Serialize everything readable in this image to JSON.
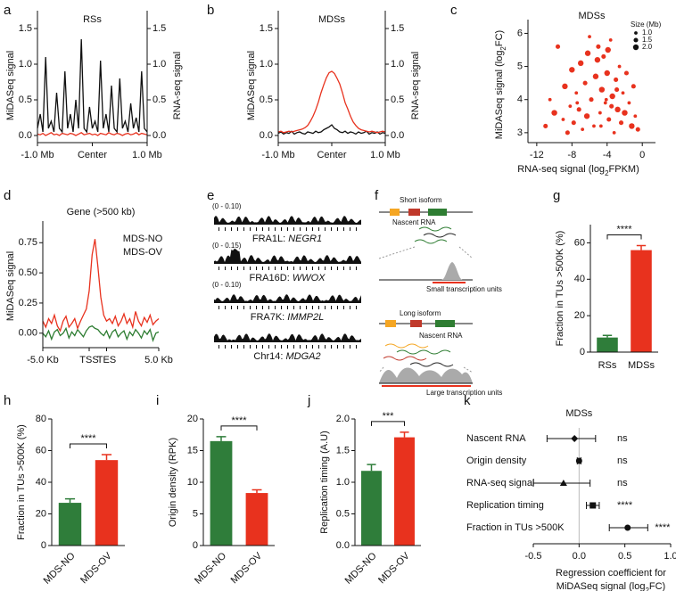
{
  "chart_data": [
    {
      "letter": "a",
      "type": "dual_line",
      "title": "RSs",
      "y_label": "MiDASeq signal",
      "y2_label": "RNA-seq signal",
      "x": [
        -1,
        -0.95,
        -0.9,
        -0.85,
        -0.8,
        -0.75,
        -0.7,
        -0.65,
        -0.6,
        -0.55,
        -0.5,
        -0.45,
        -0.4,
        -0.35,
        -0.3,
        -0.25,
        -0.2,
        -0.15,
        -0.1,
        -0.05,
        0,
        0.05,
        0.1,
        0.15,
        0.2,
        0.25,
        0.3,
        0.35,
        0.4,
        0.45,
        0.5,
        0.55,
        0.6,
        0.65,
        0.7,
        0.75,
        0.8,
        0.85,
        0.9,
        0.95,
        1
      ],
      "xlim": [
        -1,
        1
      ],
      "xticks": [
        {
          "value": -1,
          "label": "-1.0 Mb"
        },
        {
          "value": 0,
          "label": "Center"
        },
        {
          "value": 1,
          "label": "1.0 Mb"
        }
      ],
      "ylim": [
        -0.1,
        1.5
      ],
      "yticks": [
        {
          "value": 0,
          "label": "0.0"
        },
        0.5,
        {
          "value": 1,
          "label": "1.0"
        },
        1.5
      ],
      "y2lim": [
        -0.1,
        1.5
      ],
      "y2ticks": [
        {
          "value": 0,
          "label": "0.0"
        },
        0.5,
        {
          "value": 1,
          "label": "1.0"
        },
        1.5
      ],
      "series": [
        {
          "color": "#e8321e",
          "values": [
            0.02,
            0.01,
            0.03,
            0.0,
            0.02,
            0.04,
            0.01,
            0.02,
            0.0,
            0.03,
            0.02,
            0.01,
            0.03,
            0.02,
            0.0,
            0.02,
            0.04,
            0.01,
            0.02,
            0.03,
            0.01,
            0.02,
            0.0,
            0.03,
            0.02,
            0.01,
            0.04,
            0.02,
            0.01,
            0.03,
            0.02,
            0.0,
            0.02,
            0.03,
            0.01,
            0.02,
            0.04,
            0.01,
            0.03,
            0.02,
            0.01
          ]
        },
        {
          "color": "#111111",
          "axis": "y2",
          "values": [
            0.1,
            0.3,
            0.05,
            1.1,
            0.1,
            0.2,
            0.05,
            0.6,
            0.1,
            0.05,
            0.9,
            0.1,
            0.3,
            0.05,
            0.5,
            0.1,
            1.35,
            0.1,
            0.05,
            0.4,
            0.1,
            0.2,
            0.05,
            1.05,
            0.1,
            0.3,
            0.05,
            0.7,
            0.1,
            0.05,
            0.8,
            0.1,
            0.2,
            0.05,
            0.45,
            0.1,
            0.25,
            0.05,
            0.9,
            0.1,
            0.05
          ]
        }
      ]
    },
    {
      "letter": "b",
      "type": "dual_line",
      "title": "MDSs",
      "y_label": "MiDASeq signal",
      "y2_label": "RNA-seq signal",
      "x": [
        -1,
        -0.95,
        -0.9,
        -0.85,
        -0.8,
        -0.75,
        -0.7,
        -0.65,
        -0.6,
        -0.55,
        -0.5,
        -0.45,
        -0.4,
        -0.35,
        -0.3,
        -0.25,
        -0.2,
        -0.15,
        -0.1,
        -0.05,
        0,
        0.05,
        0.1,
        0.15,
        0.2,
        0.25,
        0.3,
        0.35,
        0.4,
        0.45,
        0.5,
        0.55,
        0.6,
        0.65,
        0.7,
        0.75,
        0.8,
        0.85,
        0.9,
        0.95,
        1
      ],
      "xlim": [
        -1,
        1
      ],
      "xticks": [
        {
          "value": -1,
          "label": "-1.0 Mb"
        },
        {
          "value": 0,
          "label": "Center"
        },
        {
          "value": 1,
          "label": "1.0 Mb"
        }
      ],
      "ylim": [
        -0.1,
        1.5
      ],
      "yticks": [
        {
          "value": 0,
          "label": "0.0"
        },
        0.5,
        {
          "value": 1,
          "label": "1.0"
        },
        1.5
      ],
      "y2lim": [
        -0.1,
        1.5
      ],
      "y2ticks": [
        {
          "value": 0,
          "label": "0.0"
        },
        0.5,
        {
          "value": 1,
          "label": "1.0"
        },
        1.5
      ],
      "series": [
        {
          "color": "#111111",
          "axis": "y2",
          "values": [
            0.03,
            0.05,
            0.02,
            0.04,
            0.03,
            0.06,
            0.02,
            0.04,
            0.05,
            0.03,
            0.02,
            0.05,
            0.04,
            0.03,
            0.06,
            0.04,
            0.05,
            0.08,
            0.1,
            0.12,
            0.15,
            0.1,
            0.08,
            0.05,
            0.04,
            0.06,
            0.03,
            0.05,
            0.04,
            0.02,
            0.05,
            0.03,
            0.04,
            0.06,
            0.02,
            0.04,
            0.03,
            0.05,
            0.02,
            0.04,
            0.03
          ]
        },
        {
          "color": "#e8321e",
          "values": [
            0.05,
            0.06,
            0.04,
            0.05,
            0.06,
            0.05,
            0.06,
            0.07,
            0.08,
            0.09,
            0.11,
            0.14,
            0.2,
            0.27,
            0.36,
            0.47,
            0.6,
            0.71,
            0.81,
            0.88,
            0.9,
            0.87,
            0.8,
            0.72,
            0.6,
            0.46,
            0.37,
            0.27,
            0.19,
            0.14,
            0.1,
            0.08,
            0.07,
            0.06,
            0.05,
            0.06,
            0.05,
            0.04,
            0.05,
            0.06,
            0.05
          ]
        }
      ]
    },
    {
      "letter": "c",
      "type": "scatter",
      "title": "MDSs",
      "color": "#e8321e",
      "x_label": {
        "text": "RNA-seq signal (log",
        "sub": "2",
        "tail": "FPKM)"
      },
      "y_label": {
        "text": "MiDASeq signal (log",
        "sub": "2",
        "tail": "FC)"
      },
      "size_legend": {
        "title": "Size (Mb)",
        "values": [
          {
            "value": 1,
            "label": "1.0"
          },
          1.5,
          {
            "value": 2,
            "label": "2.0"
          }
        ]
      },
      "xlim": [
        -13,
        1.5
      ],
      "xticks": [
        -12,
        -8,
        -4,
        0
      ],
      "ylim": [
        2.7,
        6.2
      ],
      "yticks": [
        3,
        4,
        5,
        6
      ],
      "x": [
        -11,
        -10.5,
        -10,
        -9.6,
        -9,
        -8.8,
        -8.5,
        -8.2,
        -8,
        -7.8,
        -7.5,
        -7.2,
        -7,
        -6.8,
        -6.5,
        -6.3,
        -6,
        -5.8,
        -5.5,
        -5.3,
        -5,
        -4.8,
        -4.6,
        -4.4,
        -4.2,
        -4,
        -3.8,
        -3.6,
        -3.4,
        -3.2,
        -3,
        -2.8,
        -2.6,
        -2.4,
        -2.2,
        -2,
        -1.8,
        -1.5,
        -1.2,
        -1,
        -0.8,
        -0.5,
        -6.2,
        -4.1,
        -3.5,
        -5.1,
        -7.4,
        -2.9,
        -4.7,
        -3.9
      ],
      "y": [
        3.2,
        4.0,
        3.6,
        5.6,
        3.4,
        4.4,
        3.0,
        3.8,
        4.9,
        3.3,
        4.2,
        3.7,
        5.1,
        3.1,
        4.5,
        3.5,
        5.9,
        4.0,
        3.2,
        4.7,
        5.6,
        3.6,
        4.3,
        5.3,
        3.9,
        4.8,
        3.4,
        5.8,
        4.1,
        3.0,
        4.6,
        3.7,
        5.0,
        3.3,
        4.2,
        3.6,
        4.8,
        3.9,
        3.2,
        4.4,
        3.5,
        3.1,
        5.4,
        4.0,
        3.8,
        5.2,
        3.9,
        4.3,
        3.2,
        5.5
      ],
      "sizes": [
        1.5,
        1,
        2,
        1.5,
        1,
        2,
        1.5,
        1,
        2,
        1.5,
        1,
        1.5,
        2,
        1,
        1.5,
        2,
        1,
        1.5,
        1,
        2,
        1.5,
        1,
        2,
        1.5,
        1,
        2,
        1.5,
        1,
        2,
        1,
        1.5,
        2,
        1,
        1.5,
        1,
        2,
        1.5,
        1,
        2,
        1.5,
        1,
        1.5,
        2,
        1,
        1.5,
        2,
        1,
        1.5,
        1,
        2
      ]
    },
    {
      "letter": "d",
      "type": "line",
      "title": "Gene (>500 kb)",
      "y_label": "MiDASeq signal",
      "x": [
        0,
        0.025,
        0.05,
        0.075,
        0.1,
        0.125,
        0.15,
        0.175,
        0.2,
        0.225,
        0.25,
        0.275,
        0.3,
        0.325,
        0.35,
        0.375,
        0.4,
        0.425,
        0.45,
        0.475,
        0.5,
        0.525,
        0.55,
        0.575,
        0.6,
        0.625,
        0.65,
        0.675,
        0.7,
        0.725,
        0.75,
        0.775,
        0.8,
        0.825,
        0.85,
        0.875,
        0.9,
        0.925,
        0.95,
        0.975,
        1
      ],
      "xlim": [
        0,
        1
      ],
      "xticks": [
        {
          "value": 0,
          "label": "-5.0 Kb"
        },
        {
          "value": 0.4,
          "label": "TSS"
        },
        {
          "value": 0.55,
          "label": "TES"
        },
        {
          "value": 1,
          "label": "5.0 Kb"
        }
      ],
      "ylim": [
        -0.12,
        0.9
      ],
      "yticks": [
        {
          "value": 0,
          "label": "0.00"
        },
        0.25,
        {
          "value": 0.5,
          "label": "0.50"
        },
        0.75
      ],
      "series": [
        {
          "name": "MDS-NO",
          "color": "#2e7d32",
          "values": [
            0.0,
            -0.03,
            0.02,
            -0.05,
            0.01,
            0.03,
            -0.02,
            0.0,
            0.04,
            -0.04,
            0.01,
            -0.02,
            0.03,
            0.0,
            -0.03,
            0.02,
            0.05,
            0.06,
            0.04,
            0.03,
            0.0,
            -0.02,
            0.02,
            -0.04,
            0.01,
            0.03,
            -0.03,
            0.0,
            0.02,
            -0.05,
            0.01,
            -0.02,
            0.03,
            0.0,
            -0.04,
            0.02,
            -0.01,
            0.03,
            -0.06,
            0.0,
            0.01
          ]
        },
        {
          "name": "MDS-OV",
          "color": "#e8321e",
          "values": [
            0.1,
            0.05,
            0.12,
            0.08,
            0.15,
            0.06,
            0.02,
            0.1,
            0.14,
            0.05,
            0.08,
            0.12,
            0.04,
            0.1,
            0.15,
            0.2,
            0.35,
            0.65,
            0.78,
            0.55,
            0.3,
            0.15,
            0.1,
            0.12,
            0.08,
            0.14,
            0.06,
            0.1,
            0.16,
            0.08,
            0.12,
            0.05,
            0.18,
            0.1,
            0.06,
            0.13,
            0.09,
            0.15,
            0.07,
            0.1,
            0.12
          ]
        }
      ]
    },
    {
      "letter": "g",
      "type": "bar",
      "y_label": "Fraction in TUs >500K (%)",
      "categories": [
        "RSs",
        "MDSs"
      ],
      "values": [
        8,
        56
      ],
      "errors": [
        1.2,
        2.5
      ],
      "colors": [
        "#2f7d3a",
        "#e8321e"
      ],
      "significance": "****",
      "ylim": [
        0,
        70
      ],
      "yticks": [
        0,
        20,
        40,
        60
      ]
    },
    {
      "letter": "h",
      "type": "bar",
      "y_label": "Fraction in TUs >500K (%)",
      "categories": [
        "MDS-NO",
        "MDS-OV"
      ],
      "values": [
        27,
        54
      ],
      "errors": [
        2.5,
        3.5
      ],
      "colors": [
        "#2f7d3a",
        "#e8321e"
      ],
      "significance": "****",
      "ylim": [
        0,
        80
      ],
      "yticks": [
        0,
        20,
        40,
        60,
        80
      ]
    },
    {
      "letter": "i",
      "type": "bar",
      "y_label": "Origin density (RPK)",
      "categories": [
        "MDS-NO",
        "MDS-OV"
      ],
      "values": [
        16.5,
        8.3
      ],
      "errors": [
        0.7,
        0.5
      ],
      "colors": [
        "#2f7d3a",
        "#e8321e"
      ],
      "significance": "****",
      "ylim": [
        0,
        20
      ],
      "yticks": [
        0,
        5,
        10,
        15,
        20
      ]
    },
    {
      "letter": "j",
      "type": "bar",
      "y_label": "Replication timing (A.U)",
      "categories": [
        "MDS-NO",
        "MDS-OV"
      ],
      "values": [
        1.18,
        1.71
      ],
      "errors": [
        0.1,
        0.08
      ],
      "colors": [
        "#2f7d3a",
        "#e8321e"
      ],
      "significance": "***",
      "ylim": [
        0,
        2
      ],
      "yticks": [
        {
          "value": 0,
          "label": "0.0"
        },
        0.5,
        {
          "value": 1,
          "label": "1.0"
        },
        1.5,
        {
          "value": 2,
          "label": "2.0"
        }
      ]
    },
    {
      "letter": "k",
      "type": "forest",
      "title": "MDSs",
      "x_label": "Regression coefficient for",
      "x_label2": {
        "text": "MiDASeq signal (log",
        "sub": "2",
        "tail": "FC)"
      },
      "xlim": [
        -0.5,
        1.0
      ],
      "xticks": [
        -0.5,
        {
          "value": 0,
          "label": "0.0"
        },
        0.5,
        {
          "value": 1,
          "label": "1.0"
        }
      ],
      "rows": [
        {
          "label": "Nascent RNA",
          "value": -0.05,
          "lo": -0.35,
          "hi": 0.18,
          "marker": "diamond",
          "significance": "ns"
        },
        {
          "label": "Origin density",
          "value": 0.0,
          "lo": -0.02,
          "hi": 0.02,
          "marker": "circle",
          "significance": "ns"
        },
        {
          "label": "RNA-seq signal",
          "value": -0.17,
          "lo": -0.5,
          "hi": 0.12,
          "marker": "triangle",
          "significance": "ns"
        },
        {
          "label": "Replication timing",
          "value": 0.15,
          "lo": 0.08,
          "hi": 0.22,
          "marker": "square",
          "significance": "****"
        },
        {
          "label": "Fraction in TUs >500K",
          "value": 0.53,
          "lo": 0.33,
          "hi": 0.75,
          "marker": "circle",
          "significance": "****"
        }
      ]
    }
  ],
  "panel_e": {
    "letter": "e",
    "tracks": [
      {
        "scale": "(0 - 0.10)",
        "locus": "FRA1L: ",
        "gene": "NEGR1"
      },
      {
        "scale": "(0 - 0.15)",
        "locus": "FRA16D: ",
        "gene": "WWOX"
      },
      {
        "scale": "(0 - 0.10)",
        "locus": "FRA7K: ",
        "gene": "IMMP2L"
      },
      {
        "locus": "Chr14: ",
        "gene": "MDGA2"
      }
    ]
  },
  "panel_f": {
    "letter": "f",
    "short_isoform": "Short isoform",
    "nascent_1": "Nascent RNA",
    "small_units": "Small transcription units",
    "long_isoform": "Long isoform",
    "nascent_2": "Nascent RNA",
    "large_units": "Large transcription units"
  }
}
